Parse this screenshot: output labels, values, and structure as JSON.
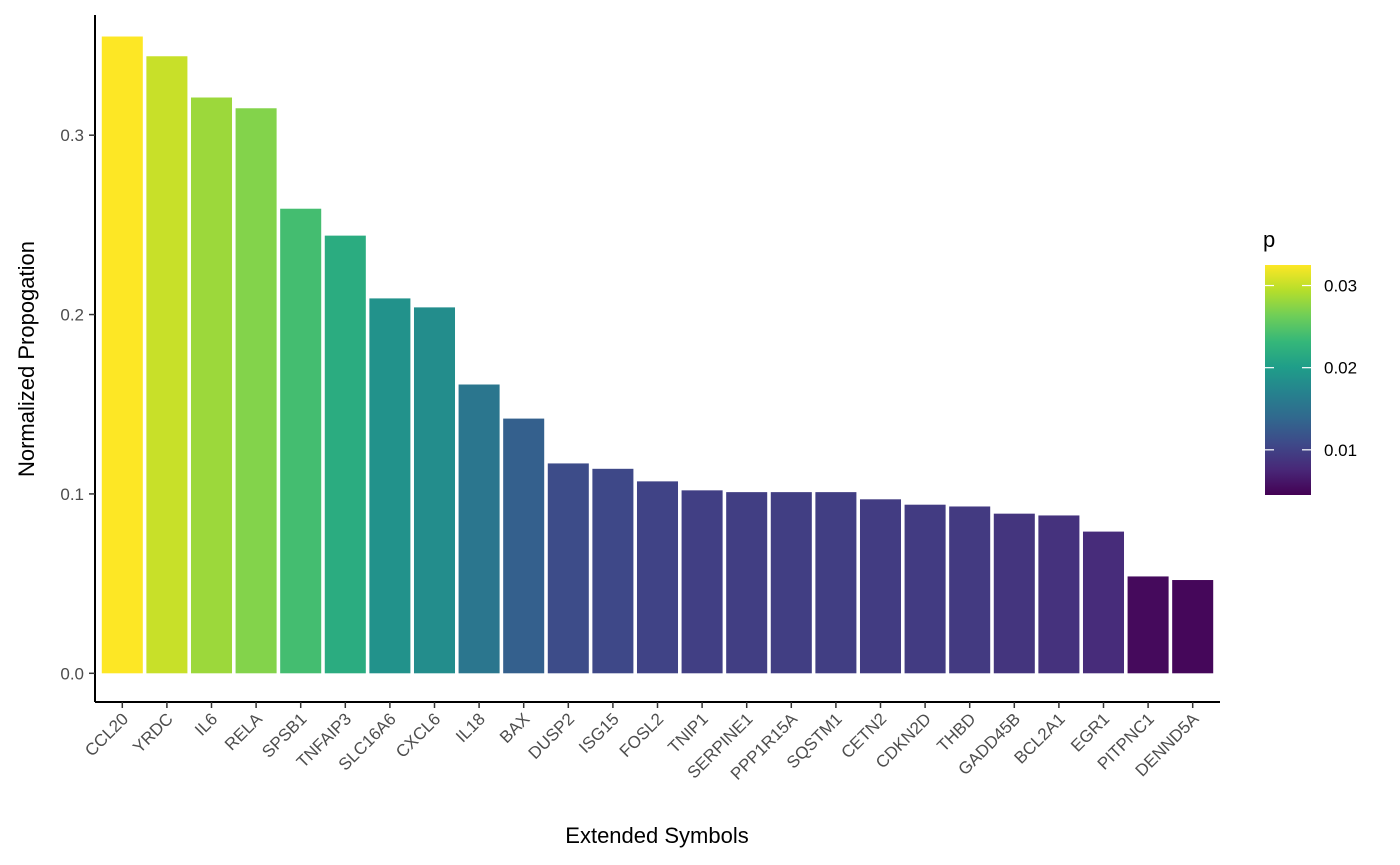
{
  "chart_data": {
    "type": "bar",
    "title": "",
    "xlabel": "Extended Symbols",
    "ylabel": "Normalized Propogation",
    "ylim": [
      -0.016,
      0.367
    ],
    "yticks": [
      0.0,
      0.1,
      0.2,
      0.3
    ],
    "ytick_labels": [
      "0.0",
      "0.1",
      "0.2",
      "0.3"
    ],
    "grid": false,
    "categories": [
      "CCL20",
      "YRDC",
      "IL6",
      "RELA",
      "SPSB1",
      "TNFAIP3",
      "SLC16A6",
      "CXCL6",
      "IL18",
      "BAX",
      "DUSP2",
      "ISG15",
      "FOSL2",
      "TNIP1",
      "SERPINE1",
      "PPP1R15A",
      "SQSTM1",
      "CETN2",
      "CDKN2D",
      "THBD",
      "GADD45B",
      "BCL2A1",
      "EGR1",
      "PITPNC1",
      "DENND5A"
    ],
    "values": [
      0.355,
      0.344,
      0.321,
      0.315,
      0.259,
      0.244,
      0.209,
      0.204,
      0.161,
      0.142,
      0.117,
      0.114,
      0.107,
      0.102,
      0.101,
      0.101,
      0.101,
      0.097,
      0.094,
      0.093,
      0.089,
      0.088,
      0.079,
      0.054,
      0.052
    ],
    "fill_by": "p",
    "p_values": [
      0.0325,
      0.0302,
      0.0283,
      0.0272,
      0.024,
      0.0218,
      0.0187,
      0.0182,
      0.0155,
      0.013,
      0.011,
      0.0106,
      0.0102,
      0.0098,
      0.0097,
      0.0097,
      0.0097,
      0.0095,
      0.0094,
      0.0093,
      0.0088,
      0.0086,
      0.008,
      0.0052,
      0.005
    ],
    "legend": {
      "title": "p",
      "placement": "right",
      "range": [
        0.0045,
        0.0325
      ],
      "ticks": [
        0.01,
        0.02,
        0.03
      ],
      "tick_labels": [
        "0.01",
        "0.02",
        "0.03"
      ]
    },
    "colormap": [
      "#440154",
      "#482878",
      "#3e4989",
      "#31688e",
      "#26828e",
      "#1f9e89",
      "#35b779",
      "#6ece58",
      "#b5de2b",
      "#fde725"
    ]
  }
}
